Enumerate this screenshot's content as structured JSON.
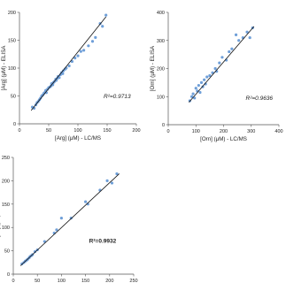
{
  "chart_data": [
    {
      "type": "scatter",
      "xlabel": "[Arg] (μM) - LC/MS",
      "ylabel": "[Arg] (μM) - ELISA",
      "xlim": [
        0,
        200
      ],
      "ylim": [
        0,
        200
      ],
      "xticks": [
        "0",
        "50",
        "100",
        "150",
        "200"
      ],
      "yticks": [
        "0",
        "50",
        "100",
        "150",
        "200"
      ],
      "annotation": "R²=0.9713",
      "annotation_style": "italic",
      "grid": false,
      "fit_line": {
        "x": [
          20,
          148
        ],
        "y": [
          24,
          192
        ]
      },
      "point_color": "#6f9fd8",
      "series": [
        {
          "x": [
            22,
            25,
            28,
            30,
            32,
            34,
            36,
            38,
            40,
            42,
            44,
            45,
            46,
            48,
            50,
            52,
            54,
            55,
            57,
            58,
            60,
            62,
            63,
            65,
            66,
            68,
            70,
            72,
            74,
            75,
            78,
            80,
            85,
            90,
            95,
            100,
            105,
            110,
            118,
            125,
            130,
            138,
            142,
            148
          ],
          "y": [
            30,
            28,
            34,
            38,
            40,
            43,
            46,
            50,
            52,
            55,
            57,
            60,
            56,
            62,
            65,
            66,
            68,
            72,
            70,
            74,
            76,
            80,
            78,
            82,
            85,
            83,
            88,
            92,
            90,
            95,
            98,
            100,
            104,
            112,
            118,
            122,
            130,
            132,
            140,
            148,
            155,
            180,
            175,
            195
          ]
        }
      ]
    },
    {
      "type": "scatter",
      "xlabel": "[Orn] (μM) - LC/MS",
      "ylabel": "[Orn] (μM) - ELISA",
      "xlim": [
        0,
        400
      ],
      "ylim": [
        0,
        400
      ],
      "xticks": [
        "0",
        "100",
        "200",
        "300",
        "400"
      ],
      "yticks": [
        "0",
        "100",
        "200",
        "300",
        "400"
      ],
      "annotation": "R²=0.9636",
      "annotation_style": "italic",
      "grid": false,
      "fit_line": {
        "x": [
          75,
          310
        ],
        "y": [
          80,
          350
        ]
      },
      "point_color": "#6f9fd8",
      "series": [
        {
          "x": [
            78,
            85,
            90,
            95,
            100,
            105,
            110,
            115,
            120,
            125,
            130,
            135,
            140,
            150,
            160,
            170,
            175,
            185,
            195,
            210,
            220,
            230,
            245,
            255,
            270,
            285,
            295,
            305
          ],
          "y": [
            85,
            100,
            110,
            95,
            130,
            120,
            140,
            115,
            150,
            135,
            160,
            145,
            170,
            175,
            185,
            200,
            190,
            220,
            240,
            230,
            260,
            270,
            320,
            300,
            310,
            330,
            310,
            345
          ]
        }
      ]
    },
    {
      "type": "scatter",
      "xlabel": "[Cit] (μM) - LC-MS",
      "ylabel": "[Cit] (μM) - ELISA",
      "xlim": [
        0,
        250
      ],
      "ylim": [
        0,
        250
      ],
      "xticks": [
        "0",
        "50",
        "100",
        "150",
        "200",
        "250"
      ],
      "yticks": [
        "0",
        "50",
        "100",
        "150",
        "200",
        "250"
      ],
      "annotation": "R²=0.9932",
      "annotation_style": "bold",
      "grid": false,
      "fit_line": {
        "x": [
          15,
          220
        ],
        "y": [
          18,
          215
        ]
      },
      "point_color": "#6f9fd8",
      "series": [
        {
          "x": [
            18,
            22,
            25,
            28,
            30,
            33,
            35,
            38,
            40,
            45,
            50,
            65,
            85,
            90,
            100,
            120,
            150,
            155,
            180,
            195,
            205,
            215
          ],
          "y": [
            22,
            25,
            28,
            30,
            32,
            35,
            38,
            40,
            42,
            48,
            52,
            70,
            88,
            95,
            120,
            120,
            155,
            150,
            180,
            200,
            195,
            215
          ]
        }
      ]
    }
  ]
}
